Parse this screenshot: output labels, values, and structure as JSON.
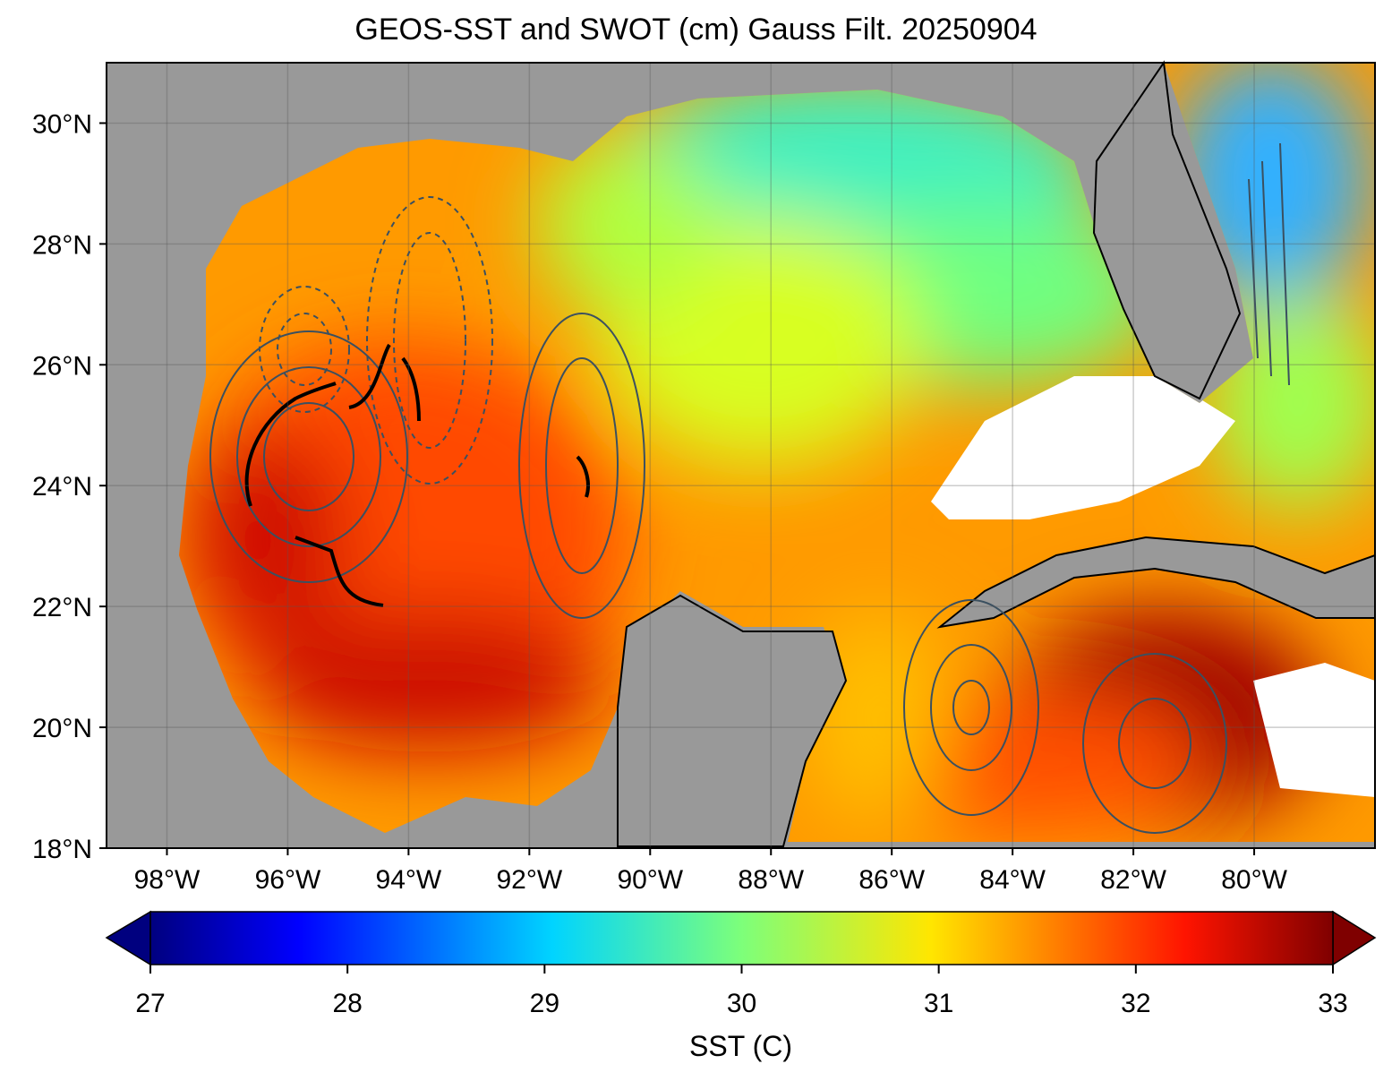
{
  "title": "GEOS-SST  and SWOT (cm) Gauss Filt. 20250904",
  "chart_data": {
    "type": "heatmap",
    "title": "GEOS-SST  and SWOT (cm) Gauss Filt. 20250904",
    "xlim": [
      -99,
      -78
    ],
    "ylim": [
      18,
      31
    ],
    "x_ticks": [
      -98,
      -96,
      -94,
      -92,
      -90,
      -88,
      -86,
      -84,
      -82,
      -80
    ],
    "x_tick_labels": [
      "98°W",
      "96°W",
      "94°W",
      "92°W",
      "90°W",
      "88°W",
      "86°W",
      "84°W",
      "82°W",
      "80°W"
    ],
    "y_ticks": [
      30,
      28,
      26,
      24,
      22,
      20,
      18
    ],
    "y_tick_labels": [
      "30°N",
      "28°N",
      "26°N",
      "24°N",
      "22°N",
      "20°N",
      "18°N"
    ],
    "grid": true,
    "colorbar": {
      "label": "SST (C)",
      "colormap": "jet",
      "range": [
        27,
        33
      ],
      "extend": "both",
      "ticks": [
        27,
        28,
        29,
        30,
        31,
        32,
        33
      ],
      "tick_labels": [
        "27",
        "28",
        "29",
        "30",
        "31",
        "32",
        "33"
      ],
      "placement": "bottom"
    },
    "overlay": "SWOT SSH contours (cm), solid positive / dashed negative",
    "land_color": "#999999",
    "missing_color": "#ffffff"
  }
}
